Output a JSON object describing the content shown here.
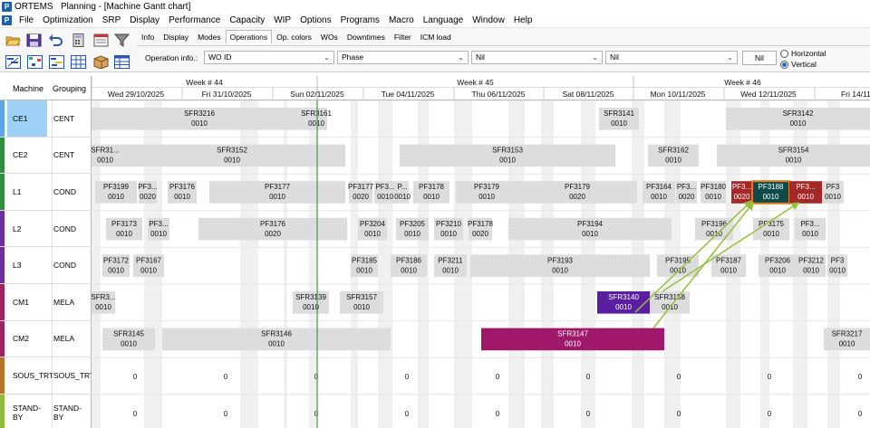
{
  "window": {
    "app_name": "ORTEMS",
    "title": "Planning - [Machine Gantt chart]"
  },
  "menu": [
    "File",
    "Optimization",
    "SRP",
    "Display",
    "Performance",
    "Capacity",
    "WIP",
    "Options",
    "Programs",
    "Macro",
    "Language",
    "Window",
    "Help"
  ],
  "toolbar": {
    "buttons_row1": [
      "open-folder-icon",
      "save-icon",
      "undo-icon",
      "calculator-icon",
      "sheet-list-icon",
      "filter-icon"
    ],
    "buttons_row2": [
      "gantt-view-icon",
      "network-view-icon",
      "table-view-icon",
      "grid-view-icon",
      "package-icon",
      "table-alt-icon"
    ]
  },
  "tabs": [
    {
      "label": "Info"
    },
    {
      "label": "Display"
    },
    {
      "label": "Modes"
    },
    {
      "label": "Operations",
      "active": true
    },
    {
      "label": "Op. colors"
    },
    {
      "label": "WOs"
    },
    {
      "label": "Downtimes"
    },
    {
      "label": "Filter"
    },
    {
      "label": "ICM load"
    }
  ],
  "operation_info": {
    "label": "Operation info.:",
    "select1": "WO ID",
    "select2": "Phase",
    "select3": "Nil",
    "select4": "Nil",
    "nil_button": "Nil",
    "radio_horizontal": "Horizontal",
    "radio_vertical": "Vertical",
    "selected": "Vertical"
  },
  "columns": {
    "machine": "Machine",
    "grouping": "Grouping"
  },
  "weeks": [
    {
      "label": "Week # 44"
    },
    {
      "label": "Week # 45"
    },
    {
      "label": "Week # 46"
    }
  ],
  "days": [
    "Wed 29/10/2025",
    "Fri 31/10/2025",
    "Sun 02/11/2025",
    "Tue 04/11/2025",
    "Thu 06/11/2025",
    "Sat 08/11/2025",
    "Mon 10/11/2025",
    "Wed 12/11/2025",
    "Fri 14/11/2"
  ],
  "rows": [
    {
      "machine": "CE1",
      "group": "CENT",
      "color": "#5aa5e8",
      "selected": true
    },
    {
      "machine": "CE2",
      "group": "CENT",
      "color": "#2f8f3e"
    },
    {
      "machine": "L1",
      "group": "COND",
      "color": "#2f8f3e"
    },
    {
      "machine": "L2",
      "group": "COND",
      "color": "#6a2ea0"
    },
    {
      "machine": "L3",
      "group": "COND",
      "color": "#6a2ea0"
    },
    {
      "machine": "CM1",
      "group": "MELA",
      "color": "#a0225e"
    },
    {
      "machine": "CM2",
      "group": "MELA",
      "color": "#a0225e"
    },
    {
      "machine": "SOUS_TRT",
      "group": "SOUS_TRT",
      "color": "#b8742a"
    },
    {
      "machine": "STAND-BY",
      "group": "STAND-BY",
      "color": "#8fb93a"
    }
  ],
  "bars": [
    {
      "row": 0,
      "id": "SFR3216",
      "op": "0010"
    },
    {
      "row": 0,
      "id": "SFR3161",
      "op": "0010"
    },
    {
      "row": 0,
      "id": "SFR3141",
      "op": "0010"
    },
    {
      "row": 0,
      "id": "SFR3142",
      "op": "0010"
    },
    {
      "row": 1,
      "id": "SFR31...",
      "op": "0010"
    },
    {
      "row": 1,
      "id": "SFR3152",
      "op": "0010"
    },
    {
      "row": 1,
      "id": "SFR3153",
      "op": "0010"
    },
    {
      "row": 1,
      "id": "SFR3162",
      "op": "0010"
    },
    {
      "row": 1,
      "id": "SFR3154",
      "op": "0010"
    },
    {
      "row": 2,
      "id": "PF3199",
      "op": "0010"
    },
    {
      "row": 2,
      "id": "PF3...",
      "op": "0020"
    },
    {
      "row": 2,
      "id": "PF3176",
      "op": "0010"
    },
    {
      "row": 2,
      "id": "PF3177",
      "op": "0010"
    },
    {
      "row": 2,
      "id": "PF3177",
      "op": "0020"
    },
    {
      "row": 2,
      "id": "PF3...",
      "op": "0010"
    },
    {
      "row": 2,
      "id": "P...",
      "op": "0010"
    },
    {
      "row": 2,
      "id": "PF3178",
      "op": "0010"
    },
    {
      "row": 2,
      "id": "PF3179",
      "op": "0010"
    },
    {
      "row": 2,
      "id": "PF3179",
      "op": "0020"
    },
    {
      "row": 2,
      "id": "PF3164",
      "op": "0010"
    },
    {
      "row": 2,
      "id": "PF3...",
      "op": "0020"
    },
    {
      "row": 2,
      "id": "PF3180",
      "op": "0010"
    },
    {
      "row": 2,
      "id": "PF3...",
      "op": "0020"
    },
    {
      "row": 2,
      "id": "PF3188",
      "op": "0010"
    },
    {
      "row": 2,
      "id": "PF3...",
      "op": "0010"
    },
    {
      "row": 2,
      "id": "PF3",
      "op": "0010"
    },
    {
      "row": 3,
      "id": "PF3173",
      "op": "0010"
    },
    {
      "row": 3,
      "id": "PF3...",
      "op": "0010"
    },
    {
      "row": 3,
      "id": "PF3176",
      "op": "0020"
    },
    {
      "row": 3,
      "id": "PF3204",
      "op": "0010"
    },
    {
      "row": 3,
      "id": "PF3205",
      "op": "0010"
    },
    {
      "row": 3,
      "id": "PF3210",
      "op": "0010"
    },
    {
      "row": 3,
      "id": "PF3178",
      "op": "0020"
    },
    {
      "row": 3,
      "id": "PF3194",
      "op": "0010"
    },
    {
      "row": 3,
      "id": "PF3196",
      "op": "0010"
    },
    {
      "row": 3,
      "id": "PF3175",
      "op": "0010"
    },
    {
      "row": 3,
      "id": "PF3...",
      "op": "0010"
    },
    {
      "row": 4,
      "id": "PF3172",
      "op": "0010"
    },
    {
      "row": 4,
      "id": "PF3167",
      "op": "0010"
    },
    {
      "row": 4,
      "id": "PF3185",
      "op": "0010"
    },
    {
      "row": 4,
      "id": "PF3186",
      "op": "0010"
    },
    {
      "row": 4,
      "id": "PF3211",
      "op": "0010"
    },
    {
      "row": 4,
      "id": "PF3193",
      "op": "0010"
    },
    {
      "row": 4,
      "id": "PF3195",
      "op": "0010"
    },
    {
      "row": 4,
      "id": "PF3187",
      "op": "0010"
    },
    {
      "row": 4,
      "id": "PF3206",
      "op": "0010"
    },
    {
      "row": 4,
      "id": "PF3212",
      "op": "0010"
    },
    {
      "row": 4,
      "id": "PF3",
      "op": "0010"
    },
    {
      "row": 5,
      "id": "SFR3...",
      "op": "0010"
    },
    {
      "row": 5,
      "id": "SFR3139",
      "op": "0010"
    },
    {
      "row": 5,
      "id": "SFR3157",
      "op": "0010"
    },
    {
      "row": 5,
      "id": "SFR3140",
      "op": "0010"
    },
    {
      "row": 5,
      "id": "SFR3158",
      "op": "0010"
    },
    {
      "row": 6,
      "id": "SFR3145",
      "op": "0010"
    },
    {
      "row": 6,
      "id": "SFR3146",
      "op": "0010"
    },
    {
      "row": 6,
      "id": "SFR3147",
      "op": "0010"
    },
    {
      "row": 6,
      "id": "SFR3217",
      "op": "0010"
    },
    {
      "row": 7,
      "id": "0"
    },
    {
      "row": 7,
      "id": "0"
    },
    {
      "row": 7,
      "id": "0"
    },
    {
      "row": 7,
      "id": "0"
    },
    {
      "row": 7,
      "id": "0"
    },
    {
      "row": 7,
      "id": "0"
    },
    {
      "row": 7,
      "id": "0"
    },
    {
      "row": 7,
      "id": "0"
    },
    {
      "row": 7,
      "id": "0"
    },
    {
      "row": 8,
      "id": "0"
    },
    {
      "row": 8,
      "id": "0"
    },
    {
      "row": 8,
      "id": "0"
    },
    {
      "row": 8,
      "id": "0"
    },
    {
      "row": 8,
      "id": "0"
    },
    {
      "row": 8,
      "id": "0"
    },
    {
      "row": 8,
      "id": "0"
    },
    {
      "row": 8,
      "id": "0"
    },
    {
      "row": 8,
      "id": "0"
    }
  ],
  "colors": {
    "bar_default": "#d2d2d2",
    "bar_selected": "#0e4a4a",
    "bar_red": "#a42828",
    "bar_purple": "#5a1fa0",
    "bar_magenta": "#a0186a",
    "link": "#95c13a",
    "today": "#3c9a3c"
  }
}
